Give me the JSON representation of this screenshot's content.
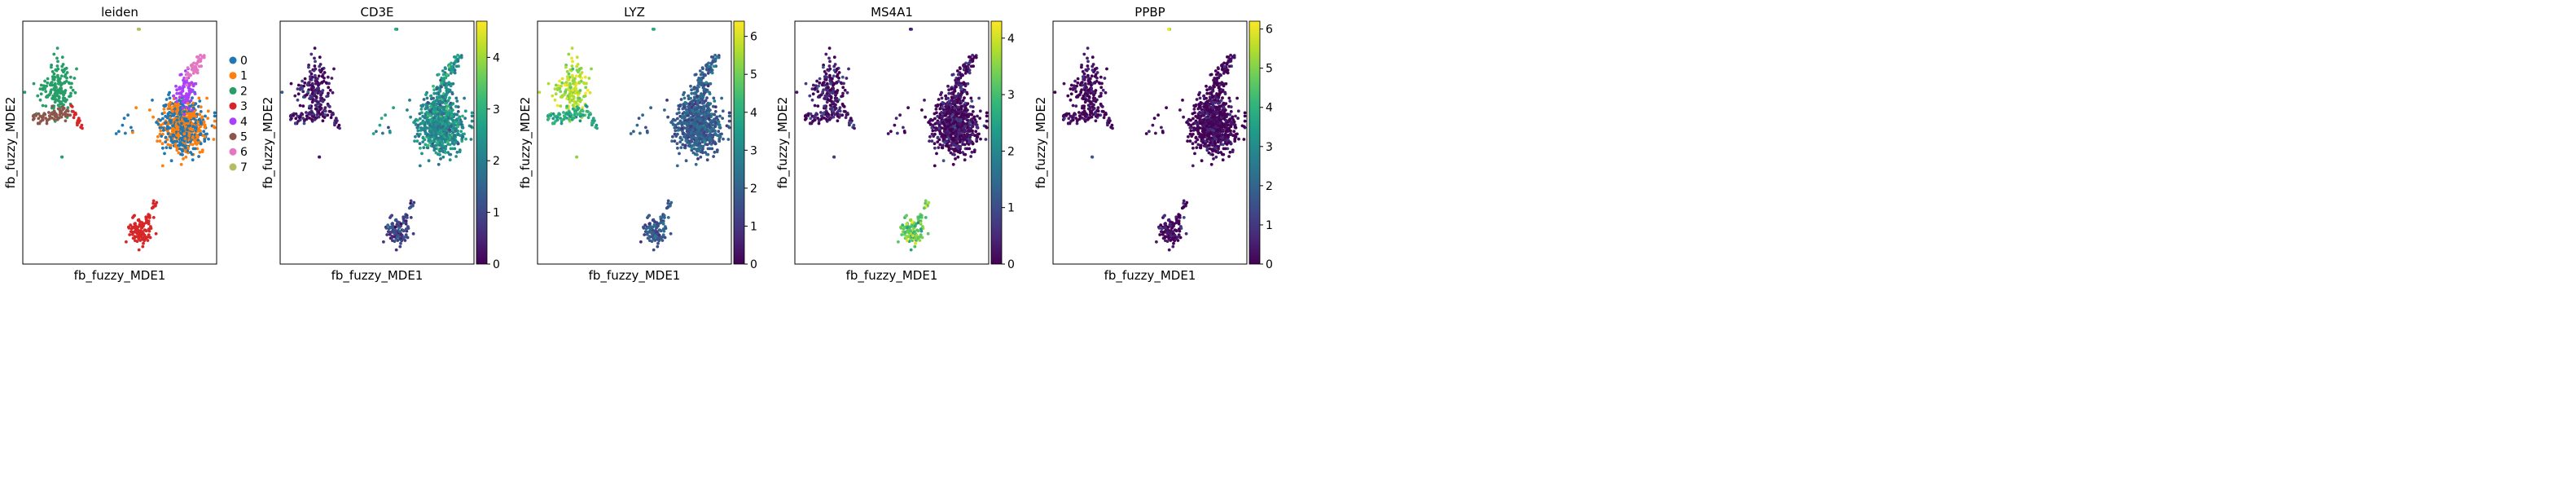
{
  "figure": {
    "xlabel": "fb_fuzzy_MDE1",
    "ylabel": "fb_fuzzy_MDE2"
  },
  "chart_data": [
    {
      "type": "scatter",
      "title": "leiden",
      "xlabel": "fb_fuzzy_MDE1",
      "ylabel": "fb_fuzzy_MDE2",
      "legend": "right",
      "legend_entries": [
        "0",
        "1",
        "2",
        "3",
        "4",
        "5",
        "6",
        "7"
      ],
      "colors": {
        "0": "#1f77b4",
        "1": "#ff7f0e",
        "2": "#279e68",
        "3": "#d62728",
        "4": "#aa40fc",
        "5": "#8c564b",
        "6": "#e377c2",
        "7": "#b5bd61"
      },
      "clusters": [
        {
          "name": "0",
          "region": "right-main-cluster",
          "cx": 0.83,
          "cy": 0.55
        },
        {
          "name": "1",
          "region": "right-main-cluster",
          "cx": 0.83,
          "cy": 0.58
        },
        {
          "name": "2",
          "region": "left-upper-cluster",
          "cx": 0.18,
          "cy": 0.45
        },
        {
          "name": "3",
          "region": "bottom-cluster",
          "cx": 0.61,
          "cy": 0.12
        },
        {
          "name": "4",
          "region": "right-upper-arm",
          "cx": 0.82,
          "cy": 0.72
        },
        {
          "name": "5",
          "region": "left-lower-band",
          "cx": 0.14,
          "cy": 0.6
        },
        {
          "name": "6",
          "region": "right-top-arm",
          "cx": 0.88,
          "cy": 0.83
        },
        {
          "name": "7",
          "region": "top-isolated",
          "cx": 0.61,
          "cy": 0.97
        }
      ],
      "grid": false
    },
    {
      "type": "scatter",
      "title": "CD3E",
      "xlabel": "fb_fuzzy_MDE1",
      "ylabel": "fb_fuzzy_MDE2",
      "colorscale": "viridis",
      "colorbar": {
        "range": [
          0,
          4.7
        ],
        "ticks": [
          "0",
          "1",
          "2",
          "3",
          "4"
        ]
      },
      "expression": {
        "main": 2.3,
        "upper_arm": 2.4,
        "left_upper": 0.3,
        "left_lower": 0.4,
        "bottom": 0.9,
        "top": 2.2,
        "isolated_left": 0.3
      },
      "grid": false
    },
    {
      "type": "scatter",
      "title": "LYZ",
      "xlabel": "fb_fuzzy_MDE1",
      "ylabel": "fb_fuzzy_MDE2",
      "colorscale": "viridis",
      "colorbar": {
        "range": [
          0,
          6.4
        ],
        "ticks": [
          "0",
          "1",
          "2",
          "3",
          "4",
          "5",
          "6"
        ]
      },
      "expression": {
        "main": 1.9,
        "upper_arm": 2.0,
        "left_upper": 5.6,
        "left_lower": 4.0,
        "bottom": 1.7,
        "top": 3.5,
        "isolated_left": 5.5
      },
      "grid": false
    },
    {
      "type": "scatter",
      "title": "MS4A1",
      "xlabel": "fb_fuzzy_MDE1",
      "ylabel": "fb_fuzzy_MDE2",
      "colorscale": "viridis",
      "colorbar": {
        "range": [
          0,
          4.3
        ],
        "ticks": [
          "0",
          "1",
          "2",
          "3",
          "4"
        ]
      },
      "expression": {
        "main": 0.1,
        "upper_arm": 0.1,
        "left_upper": 0.2,
        "left_lower": 0.2,
        "bottom": 3.2,
        "top": 0.5,
        "isolated_left": 0.4
      },
      "grid": false
    },
    {
      "type": "scatter",
      "title": "PPBP",
      "xlabel": "fb_fuzzy_MDE1",
      "ylabel": "fb_fuzzy_MDE2",
      "colorscale": "viridis",
      "colorbar": {
        "range": [
          0,
          6.2
        ],
        "ticks": [
          "0",
          "1",
          "2",
          "3",
          "4",
          "5",
          "6"
        ]
      },
      "expression": {
        "main": 0.05,
        "upper_arm": 0.05,
        "left_upper": 0.1,
        "left_lower": 0.1,
        "bottom": 0.2,
        "top": 5.8,
        "isolated_left": 0.6
      },
      "grid": false
    }
  ]
}
